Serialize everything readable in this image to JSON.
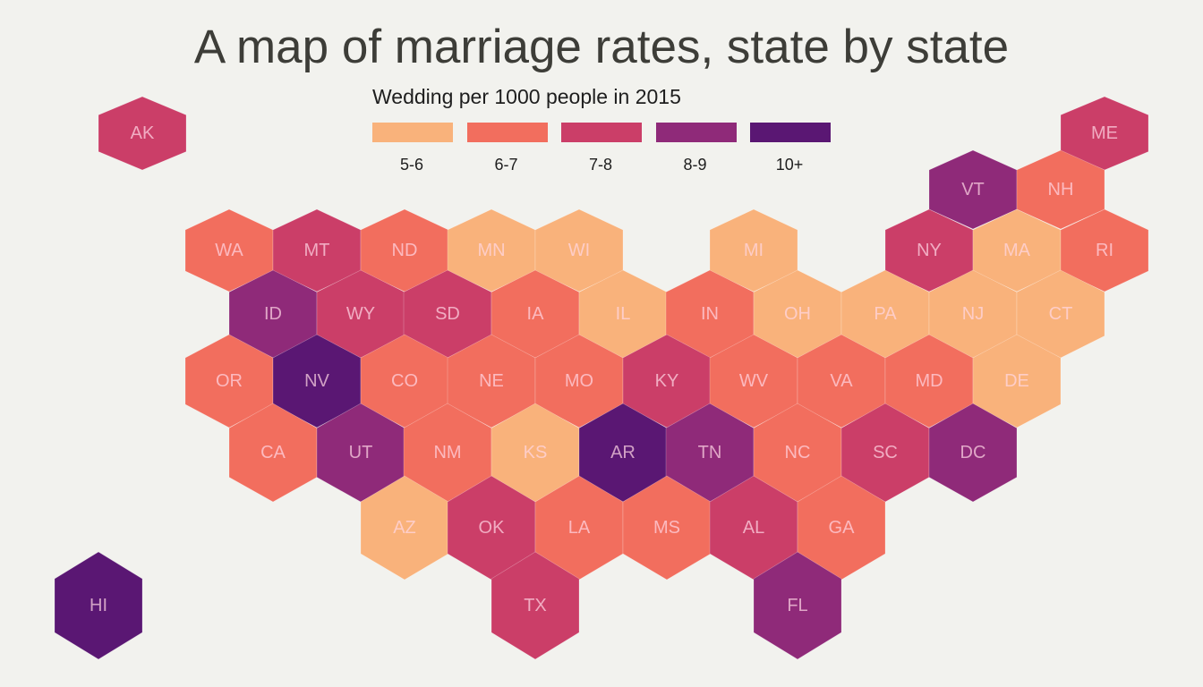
{
  "chart_data": {
    "type": "hexmap",
    "title": "A map of marriage rates, state by state",
    "legend_title": "Wedding per 1000 people in 2015",
    "categories": [
      "5-6",
      "6-7",
      "7-8",
      "8-9",
      "10+"
    ],
    "colors": [
      "#f9b27b",
      "#f26e5e",
      "#cb3e68",
      "#8f2a79",
      "#5a1773"
    ],
    "states": [
      {
        "abbr": "AK",
        "cat": "7-8"
      },
      {
        "abbr": "ME",
        "cat": "7-8"
      },
      {
        "abbr": "VT",
        "cat": "8-9"
      },
      {
        "abbr": "NH",
        "cat": "6-7"
      },
      {
        "abbr": "WA",
        "cat": "6-7"
      },
      {
        "abbr": "MT",
        "cat": "7-8"
      },
      {
        "abbr": "ND",
        "cat": "6-7"
      },
      {
        "abbr": "MN",
        "cat": "5-6"
      },
      {
        "abbr": "WI",
        "cat": "5-6"
      },
      {
        "abbr": "MI",
        "cat": "5-6"
      },
      {
        "abbr": "NY",
        "cat": "7-8"
      },
      {
        "abbr": "MA",
        "cat": "5-6"
      },
      {
        "abbr": "RI",
        "cat": "6-7"
      },
      {
        "abbr": "ID",
        "cat": "8-9"
      },
      {
        "abbr": "WY",
        "cat": "7-8"
      },
      {
        "abbr": "SD",
        "cat": "7-8"
      },
      {
        "abbr": "IA",
        "cat": "6-7"
      },
      {
        "abbr": "IL",
        "cat": "5-6"
      },
      {
        "abbr": "IN",
        "cat": "6-7"
      },
      {
        "abbr": "OH",
        "cat": "5-6"
      },
      {
        "abbr": "PA",
        "cat": "5-6"
      },
      {
        "abbr": "NJ",
        "cat": "5-6"
      },
      {
        "abbr": "CT",
        "cat": "5-6"
      },
      {
        "abbr": "OR",
        "cat": "6-7"
      },
      {
        "abbr": "NV",
        "cat": "10+"
      },
      {
        "abbr": "CO",
        "cat": "6-7"
      },
      {
        "abbr": "NE",
        "cat": "6-7"
      },
      {
        "abbr": "MO",
        "cat": "6-7"
      },
      {
        "abbr": "KY",
        "cat": "7-8"
      },
      {
        "abbr": "WV",
        "cat": "6-7"
      },
      {
        "abbr": "VA",
        "cat": "6-7"
      },
      {
        "abbr": "MD",
        "cat": "6-7"
      },
      {
        "abbr": "DE",
        "cat": "5-6"
      },
      {
        "abbr": "CA",
        "cat": "6-7"
      },
      {
        "abbr": "UT",
        "cat": "8-9"
      },
      {
        "abbr": "NM",
        "cat": "6-7"
      },
      {
        "abbr": "KS",
        "cat": "5-6"
      },
      {
        "abbr": "AR",
        "cat": "10+"
      },
      {
        "abbr": "TN",
        "cat": "8-9"
      },
      {
        "abbr": "NC",
        "cat": "6-7"
      },
      {
        "abbr": "SC",
        "cat": "7-8"
      },
      {
        "abbr": "DC",
        "cat": "8-9"
      },
      {
        "abbr": "AZ",
        "cat": "5-6"
      },
      {
        "abbr": "OK",
        "cat": "7-8"
      },
      {
        "abbr": "LA",
        "cat": "6-7"
      },
      {
        "abbr": "MS",
        "cat": "6-7"
      },
      {
        "abbr": "AL",
        "cat": "7-8"
      },
      {
        "abbr": "GA",
        "cat": "6-7"
      },
      {
        "abbr": "HI",
        "cat": "10+"
      },
      {
        "abbr": "TX",
        "cat": "7-8"
      },
      {
        "abbr": "FL",
        "cat": "8-9"
      }
    ]
  }
}
